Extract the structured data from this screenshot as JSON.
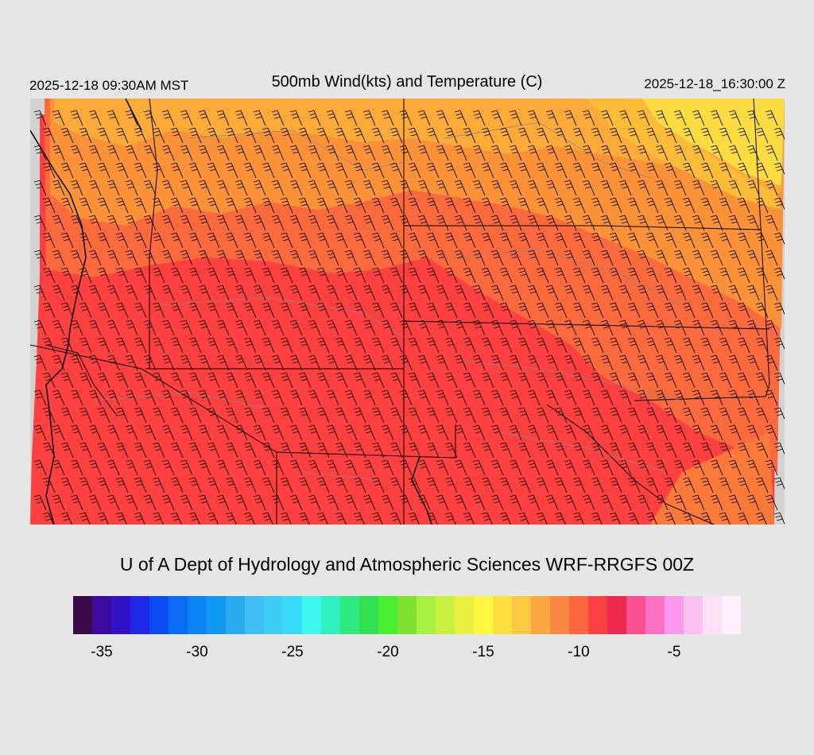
{
  "header": {
    "local_time": "2025-12-18 09:30AM MST",
    "title": "500mb Wind(kts) and Temperature (C)",
    "valid_time": "2025-12-18_16:30:00 Z"
  },
  "credit": "U of A Dept of Hydrology and Atmospheric Sciences WRF-RRGFS 00Z",
  "colorbar": {
    "colors": [
      "#3a0a4a",
      "#3b0c9c",
      "#3210c8",
      "#1e28e8",
      "#0a4cf0",
      "#0a6cf5",
      "#0a84f5",
      "#0f99f0",
      "#2aaaf0",
      "#40bef5",
      "#3ccdf5",
      "#38dcf8",
      "#3ef8f0",
      "#30f0c0",
      "#30e880",
      "#30e050",
      "#48f030",
      "#80e030",
      "#a8f040",
      "#c8f040",
      "#e8f040",
      "#fff840",
      "#fce040",
      "#fcc840",
      "#fba840",
      "#fb8840",
      "#fb6840",
      "#fb4040",
      "#f02850",
      "#f85090",
      "#fb70c0",
      "#fb98f0",
      "#fcc0f0",
      "#fce0f8",
      "#fff0fc"
    ],
    "tick_labels": [
      "-35",
      "-30",
      "-25",
      "-20",
      "-15",
      "-10",
      "-5"
    ],
    "tick_values": [
      -35,
      -30,
      -25,
      -20,
      -15,
      -10,
      -5
    ],
    "min": -36.5,
    "max": -1.5
  },
  "map": {
    "ocean_color": "#d2d2d2",
    "temperature_colors": {
      "warm": "#ff4040",
      "mid": "#fb6a3c",
      "orange": "#fc9238",
      "yellow": "#fcdc40"
    },
    "wind_barb_direction": "northwest"
  }
}
